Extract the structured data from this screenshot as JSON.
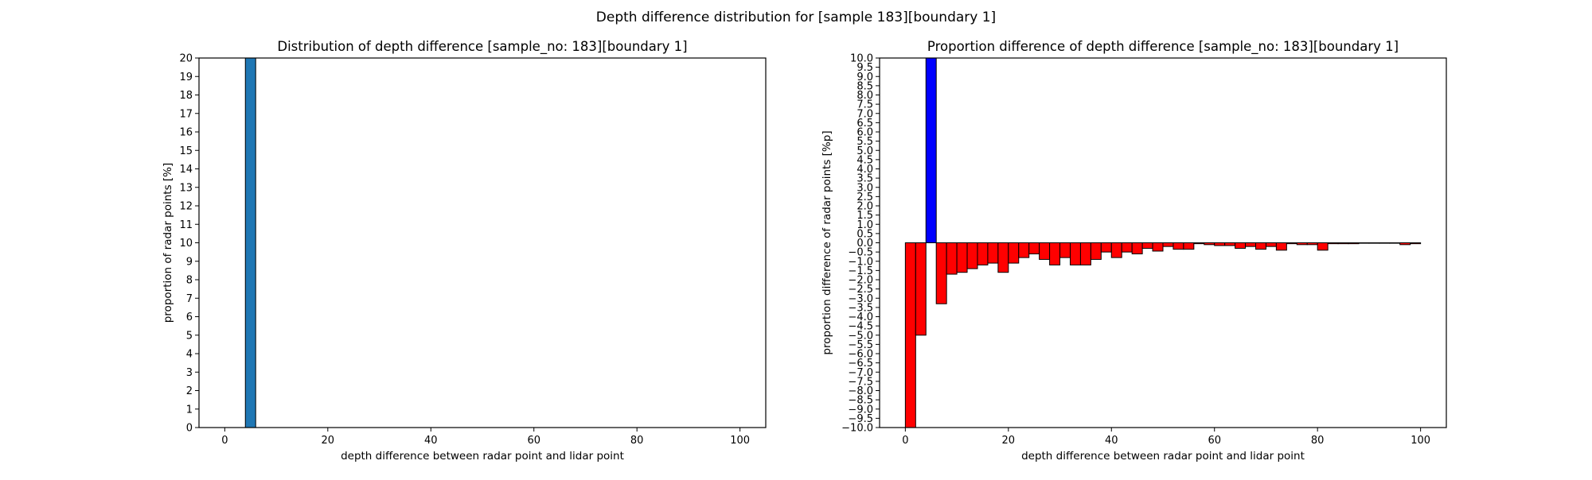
{
  "figure": {
    "suptitle": "Depth difference distribution for [sample 183][boundary 1]"
  },
  "chart_data": [
    {
      "type": "bar",
      "title": "Distribution of depth difference [sample_no: 183][boundary 1]",
      "xlabel": "depth difference between radar point and lidar point",
      "ylabel": "proportion of radar points [%]",
      "xlim": [
        -5,
        105
      ],
      "ylim": [
        0,
        20
      ],
      "xticks": [
        0,
        20,
        40,
        60,
        80,
        100
      ],
      "yticks": [
        0,
        1,
        2,
        3,
        4,
        5,
        6,
        7,
        8,
        9,
        10,
        11,
        12,
        13,
        14,
        15,
        16,
        17,
        18,
        19,
        20
      ],
      "bin_width": 2,
      "bar_color": "#1f77b4",
      "edge_color": "#000000",
      "grid": false,
      "bars": [
        {
          "x": 4,
          "value": 20
        }
      ]
    },
    {
      "type": "bar",
      "title": "Proportion difference of depth difference [sample_no: 183][boundary 1]",
      "xlabel": "depth difference between radar point and lidar point",
      "ylabel": "proportion difference of radar points [%p]",
      "xlim": [
        -5,
        105
      ],
      "ylim": [
        -10,
        10
      ],
      "xticks": [
        0,
        20,
        40,
        60,
        80,
        100
      ],
      "ytick_step": 0.5,
      "bin_width": 2,
      "positive_color": "#0000ff",
      "negative_color": "#ff0000",
      "edge_color": "#000000",
      "grid": false,
      "bars": [
        {
          "x": 0,
          "value": -10
        },
        {
          "x": 2,
          "value": -5.0
        },
        {
          "x": 4,
          "value": 10
        },
        {
          "x": 6,
          "value": -3.3
        },
        {
          "x": 8,
          "value": -1.7
        },
        {
          "x": 10,
          "value": -1.6
        },
        {
          "x": 12,
          "value": -1.4
        },
        {
          "x": 14,
          "value": -1.2
        },
        {
          "x": 16,
          "value": -1.1
        },
        {
          "x": 18,
          "value": -1.6
        },
        {
          "x": 20,
          "value": -1.1
        },
        {
          "x": 22,
          "value": -0.8
        },
        {
          "x": 24,
          "value": -0.6
        },
        {
          "x": 26,
          "value": -0.9
        },
        {
          "x": 28,
          "value": -1.2
        },
        {
          "x": 30,
          "value": -0.8
        },
        {
          "x": 32,
          "value": -1.2
        },
        {
          "x": 34,
          "value": -1.2
        },
        {
          "x": 36,
          "value": -0.9
        },
        {
          "x": 38,
          "value": -0.5
        },
        {
          "x": 40,
          "value": -0.8
        },
        {
          "x": 42,
          "value": -0.5
        },
        {
          "x": 44,
          "value": -0.6
        },
        {
          "x": 46,
          "value": -0.3
        },
        {
          "x": 48,
          "value": -0.45
        },
        {
          "x": 50,
          "value": -0.2
        },
        {
          "x": 52,
          "value": -0.35
        },
        {
          "x": 54,
          "value": -0.35
        },
        {
          "x": 56,
          "value": -0.05
        },
        {
          "x": 58,
          "value": -0.1
        },
        {
          "x": 60,
          "value": -0.15
        },
        {
          "x": 62,
          "value": -0.15
        },
        {
          "x": 64,
          "value": -0.3
        },
        {
          "x": 66,
          "value": -0.2
        },
        {
          "x": 68,
          "value": -0.35
        },
        {
          "x": 70,
          "value": -0.2
        },
        {
          "x": 72,
          "value": -0.4
        },
        {
          "x": 74,
          "value": -0.05
        },
        {
          "x": 76,
          "value": -0.1
        },
        {
          "x": 78,
          "value": -0.1
        },
        {
          "x": 80,
          "value": -0.4
        },
        {
          "x": 82,
          "value": -0.05
        },
        {
          "x": 84,
          "value": -0.05
        },
        {
          "x": 86,
          "value": -0.05
        },
        {
          "x": 88,
          "value": -0.02
        },
        {
          "x": 90,
          "value": -0.02
        },
        {
          "x": 92,
          "value": -0.02
        },
        {
          "x": 94,
          "value": -0.02
        },
        {
          "x": 96,
          "value": -0.1
        },
        {
          "x": 98,
          "value": -0.05
        }
      ]
    }
  ]
}
